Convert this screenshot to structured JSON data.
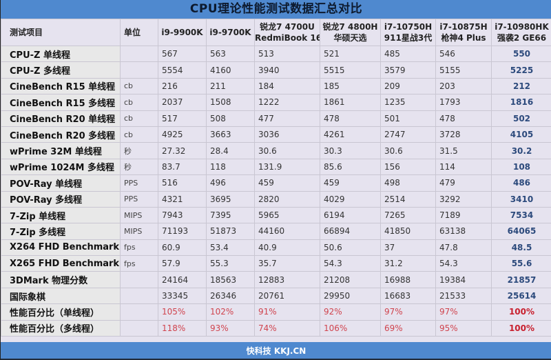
{
  "title": "CPU理论性能测试数据汇总对比",
  "footer": "快科技 KKJ.CN",
  "colors": {
    "header_blue": "#4f89cf",
    "best_blue": "#2c4a7c",
    "pct_red": "#d0444e",
    "best_red": "#c8202e",
    "body_bg": "#e6e3ef"
  },
  "headers": {
    "item": "测试项目",
    "unit": "单位",
    "cpus": [
      {
        "line1": "i9-9900K",
        "line2": ""
      },
      {
        "line1": "i9-9700K",
        "line2": ""
      },
      {
        "line1": "锐龙7 4700U",
        "line2": "RedmiBook 16"
      },
      {
        "line1": "锐龙7 4800H",
        "line2": "华硕天选"
      },
      {
        "line1": "i7-10750H",
        "line2": "911星战3代"
      },
      {
        "line1": "i7-10875H",
        "line2": "枪神4 Plus"
      },
      {
        "line1": "i7-10980HK",
        "line2": "强袭2 GE66"
      }
    ]
  },
  "rows": [
    {
      "label": "CPU-Z 单线程",
      "unit": "",
      "values": [
        "567",
        "563",
        "513",
        "521",
        "485",
        "546",
        "550"
      ]
    },
    {
      "label": "CPU-Z 多线程",
      "unit": "",
      "values": [
        "5554",
        "4160",
        "3940",
        "5515",
        "3579",
        "5155",
        "5225"
      ]
    },
    {
      "label": "CineBench R15 单线程",
      "unit": "cb",
      "values": [
        "216",
        "211",
        "184",
        "185",
        "209",
        "203",
        "212"
      ]
    },
    {
      "label": "CineBench R15 多线程",
      "unit": "cb",
      "values": [
        "2037",
        "1508",
        "1222",
        "1861",
        "1235",
        "1793",
        "1816"
      ]
    },
    {
      "label": "CineBench R20 单线程",
      "unit": "cb",
      "values": [
        "517",
        "508",
        "477",
        "478",
        "501",
        "478",
        "502"
      ]
    },
    {
      "label": "CineBench R20 多线程",
      "unit": "cb",
      "values": [
        "4925",
        "3663",
        "3036",
        "4261",
        "2747",
        "3728",
        "4105"
      ]
    },
    {
      "label": "wPrime 32M 单线程",
      "unit": "秒",
      "values": [
        "27.32",
        "28.4",
        "30.6",
        "30.3",
        "30.6",
        "31.5",
        "30.2"
      ]
    },
    {
      "label": "wPrime 1024M 多线程",
      "unit": "秒",
      "values": [
        "83.7",
        "118",
        "131.9",
        "85.6",
        "156",
        "114",
        "108"
      ]
    },
    {
      "label": "POV-Ray 单线程",
      "unit": "PPS",
      "values": [
        "516",
        "496",
        "459",
        "459",
        "498",
        "479",
        "486"
      ]
    },
    {
      "label": "POV-Ray 多线程",
      "unit": "PPS",
      "values": [
        "4321",
        "3695",
        "2820",
        "4029",
        "2514",
        "3292",
        "3410"
      ]
    },
    {
      "label": "7-Zip 单线程",
      "unit": "MIPS",
      "values": [
        "7943",
        "7395",
        "5965",
        "6194",
        "7265",
        "7189",
        "7534"
      ]
    },
    {
      "label": "7-Zip 多线程",
      "unit": "MIPS",
      "values": [
        "71193",
        "51873",
        "44160",
        "66894",
        "41850",
        "63138",
        "64065"
      ]
    },
    {
      "label": "X264 FHD Benchmark",
      "unit": "fps",
      "values": [
        "60.9",
        "53.4",
        "40.9",
        "50.6",
        "37",
        "47.8",
        "48.5"
      ]
    },
    {
      "label": "X265 FHD Benchmark",
      "unit": "fps",
      "values": [
        "57.9",
        "55.3",
        "35.7",
        "54.3",
        "31.2",
        "54.3",
        "55.6"
      ]
    },
    {
      "label": "3DMark 物理分数",
      "unit": "",
      "values": [
        "24164",
        "18563",
        "12883",
        "21208",
        "16988",
        "19384",
        "21857"
      ]
    },
    {
      "label": "国际象棋",
      "unit": "",
      "values": [
        "33345",
        "26346",
        "20761",
        "29950",
        "16683",
        "21533",
        "25614"
      ]
    },
    {
      "label": "性能百分比（单线程）",
      "unit": "",
      "pct": true,
      "values": [
        "105%",
        "102%",
        "91%",
        "92%",
        "97%",
        "97%",
        "100%"
      ]
    },
    {
      "label": "性能百分比（多线程）",
      "unit": "",
      "pct": true,
      "values": [
        "118%",
        "93%",
        "74%",
        "106%",
        "69%",
        "95%",
        "100%"
      ]
    }
  ]
}
